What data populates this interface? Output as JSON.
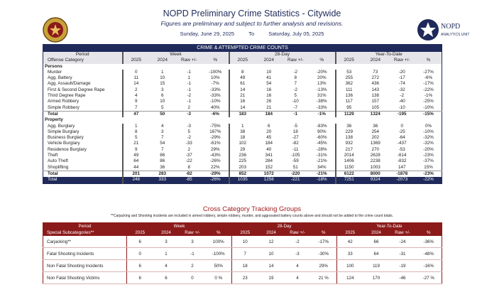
{
  "header": {
    "title": "NOPD Preliminary Crime Statistics - Citywide",
    "subtitle": "Figures are preliminary and subject to further analysis and revisions.",
    "start_date": "Sunday, June 29, 2025",
    "to": "To",
    "end_date": "Saturday, July 05, 2025",
    "logo_text": "NOPD",
    "logo_subtext": "ANALYTICS UNIT"
  },
  "main_table": {
    "title": "CRIME & ATTEMPTED CRIME COUNTS",
    "groups": [
      "Period",
      "Week",
      "28-Day",
      "Year-To-Date"
    ],
    "columns": [
      "Offense Category",
      "2025",
      "2024",
      "Raw +/-",
      "%",
      "2025",
      "2024",
      "Raw +/-",
      "%",
      "2025",
      "2024",
      "Raw +/-",
      "%"
    ],
    "sections": [
      {
        "name": "Persons",
        "rows": [
          [
            "Murder",
            "0",
            "1",
            "-1",
            "-100%",
            "8",
            "10",
            "-2",
            "-20%",
            "53",
            "73",
            "-20",
            "-27%"
          ],
          [
            "Agg. Battery",
            "11",
            "10",
            "1",
            "10%",
            "49",
            "41",
            "8",
            "20%",
            "255",
            "272",
            "-17",
            "-6%"
          ],
          [
            "Agg. Assault/Damage",
            "14",
            "15",
            "-1",
            "-7%",
            "61",
            "54",
            "7",
            "13%",
            "362",
            "436",
            "-74",
            "-17%"
          ],
          [
            "First & Second Degree Rape",
            "2",
            "3",
            "-1",
            "-33%",
            "14",
            "16",
            "-2",
            "-13%",
            "111",
            "143",
            "-32",
            "-22%"
          ],
          [
            "Third Degree Rape",
            "4",
            "6",
            "-2",
            "-33%",
            "21",
            "16",
            "5",
            "31%",
            "136",
            "138",
            "-2",
            "-1%"
          ],
          [
            "Armed Robbery",
            "9",
            "10",
            "-1",
            "-10%",
            "16",
            "26",
            "-10",
            "-38%",
            "117",
            "157",
            "-40",
            "-25%"
          ],
          [
            "Simple Robbery",
            "7",
            "5",
            "2",
            "40%",
            "14",
            "21",
            "-7",
            "-33%",
            "95",
            "105",
            "-10",
            "-10%"
          ]
        ],
        "total": [
          "Total",
          "47",
          "50",
          "-3",
          "-6%",
          "183",
          "184",
          "-1",
          "-1%",
          "1129",
          "1324",
          "-195",
          "-15%"
        ]
      },
      {
        "name": "Property",
        "rows": [
          [
            "Agg. Burglary",
            "1",
            "4",
            "-3",
            "-75%",
            "1",
            "6",
            "-5",
            "-83%",
            "36",
            "36",
            "0",
            "0%"
          ],
          [
            "Simple Burglary",
            "8",
            "3",
            "5",
            "167%",
            "38",
            "20",
            "18",
            "90%",
            "229",
            "254",
            "-25",
            "-10%"
          ],
          [
            "Business Burglary",
            "5",
            "7",
            "-2",
            "-29%",
            "18",
            "45",
            "-27",
            "-60%",
            "138",
            "202",
            "-64",
            "-32%"
          ],
          [
            "Vehicle Burglary",
            "21",
            "54",
            "-33",
            "-61%",
            "102",
            "184",
            "-82",
            "-45%",
            "932",
            "1369",
            "-437",
            "-32%"
          ],
          [
            "Residence Burglary",
            "9",
            "7",
            "2",
            "29%",
            "29",
            "40",
            "-11",
            "-28%",
            "217",
            "270",
            "-53",
            "-20%"
          ],
          [
            "Theft",
            "49",
            "86",
            "-37",
            "-43%",
            "236",
            "341",
            "-105",
            "-31%",
            "2014",
            "2628",
            "-614",
            "-23%"
          ],
          [
            "Auto Theft",
            "64",
            "86",
            "-22",
            "-26%",
            "225",
            "284",
            "-59",
            "-21%",
            "1406",
            "2238",
            "-832",
            "-37%"
          ],
          [
            "Shoplifting",
            "44",
            "36",
            "8",
            "22%",
            "203",
            "152",
            "51",
            "34%",
            "1150",
            "1003",
            "147",
            "15%"
          ]
        ],
        "total": [
          "Total",
          "201",
          "283",
          "-82",
          "-29%",
          "852",
          "1072",
          "-220",
          "-21%",
          "6122",
          "8000",
          "-1878",
          "-23%"
        ]
      }
    ],
    "grand_total": [
      "Total",
      "248",
      "333",
      "-85",
      "-26%",
      "1035",
      "1256",
      "-221",
      "-18%",
      "7251",
      "9324",
      "-2073",
      "-22%"
    ]
  },
  "cross_table": {
    "title": "Cross Category Tracking Groups",
    "note": "**Carjacking and Shooting incidents are included in armed robbery, simple robbery, murder, and aggravated battery counts above and should not be added to the crime count totals.",
    "groups": [
      "Period",
      "Week",
      "28-Day",
      "Year-To-Date"
    ],
    "columns": [
      "Special Subcategories**",
      "2025",
      "2024",
      "Raw +/-",
      "%",
      "2025",
      "2024",
      "Raw +/-",
      "%",
      "2025",
      "2024",
      "Raw +/-",
      "%"
    ],
    "rows": [
      [
        "Carjacking**",
        "6",
        "3",
        "3",
        "100%",
        "10",
        "12",
        "-2",
        "-17%",
        "42",
        "66",
        "-24",
        "-36%"
      ],
      [
        "Fatal Shooting Incidents",
        "0",
        "1",
        "-1",
        "-100%",
        "7",
        "10",
        "-3",
        "-30%",
        "33",
        "64",
        "-31",
        "-48%"
      ],
      [
        "Non Fatal Shooting Incidents",
        "6",
        "4",
        "2",
        "50%",
        "18",
        "14",
        "4",
        "29%",
        "100",
        "119",
        "-19",
        "-16%"
      ],
      [
        "Non Fatal Shooting Victims",
        "6",
        "6",
        "0",
        "0 %",
        "23",
        "19",
        "4",
        "21 %",
        "124",
        "170",
        "-46",
        "-27 %"
      ]
    ]
  }
}
